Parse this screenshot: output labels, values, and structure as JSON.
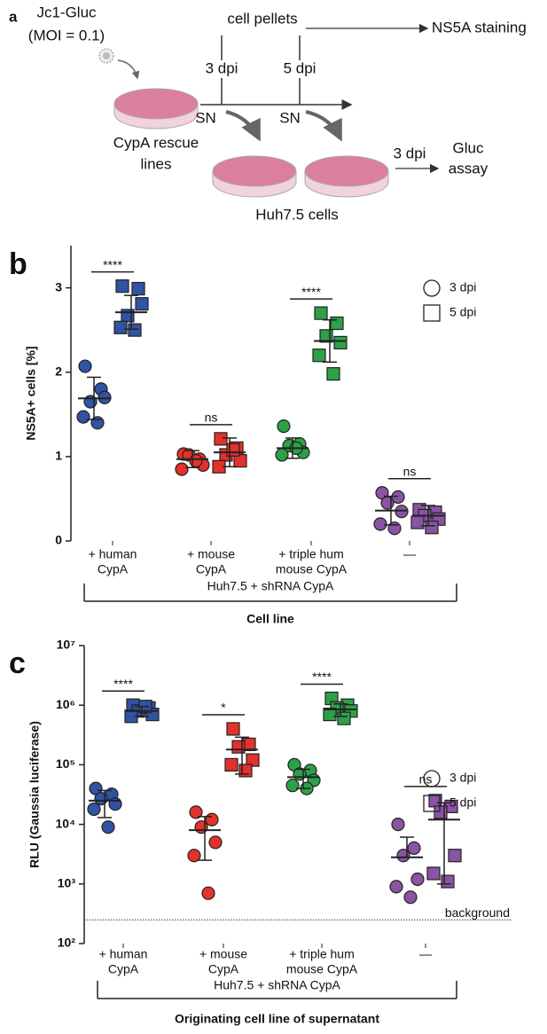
{
  "panel_a": {
    "label": "a",
    "virus": [
      "Jc1-Gluc",
      "(MOI = 0.1)"
    ],
    "cell_pellets": "cell pellets",
    "staining": "NS5A staining",
    "timepoints": [
      "3 dpi",
      "5 dpi"
    ],
    "supernatant": [
      "SN",
      "SN"
    ],
    "rescue_lines": [
      "CypA rescue",
      "lines"
    ],
    "target_cells": "Huh7.5 cells",
    "readout_time": "3 dpi",
    "readout": [
      "Gluc",
      "assay"
    ]
  },
  "chart_data": [
    {
      "type": "dot",
      "panel_label": "b",
      "ylabel": "NS5A+ cells  [%]",
      "xlabel": "Cell line",
      "group_label": "Huh7.5 + shRNA CypA",
      "categories": [
        [
          "+ human",
          "CypA"
        ],
        [
          "+ mouse",
          "CypA"
        ],
        [
          "+ triple hum",
          "mouse CypA"
        ],
        [
          "—"
        ]
      ],
      "colors": [
        "#3153a4",
        "#e4312b",
        "#2ca148",
        "#8b53a3"
      ],
      "ylim": [
        0,
        3.5
      ],
      "yticks": [
        0,
        1,
        2,
        3
      ],
      "legend": "top-right",
      "significance": [
        "****",
        "ns",
        "****",
        "ns"
      ],
      "series": [
        {
          "name": "3 dpi",
          "marker": "circle",
          "values": [
            [
              2.07,
              1.8,
              1.65,
              1.7,
              1.47,
              1.4
            ],
            [
              1.03,
              0.97,
              1.02,
              0.9,
              0.85,
              0.95
            ],
            [
              1.36,
              1.15,
              1.13,
              1.05,
              1.02,
              1.1
            ],
            [
              0.57,
              0.52,
              0.45,
              0.35,
              0.2,
              0.15
            ]
          ],
          "mean": [
            1.69,
            0.97,
            1.1,
            0.36
          ],
          "sd": [
            0.25,
            0.1,
            0.12,
            0.17
          ]
        },
        {
          "name": "5 dpi",
          "marker": "square",
          "values": [
            [
              3.02,
              2.99,
              2.67,
              2.81,
              2.53,
              2.5
            ],
            [
              1.21,
              1.1,
              1.02,
              0.95,
              0.88,
              1.08
            ],
            [
              2.7,
              2.58,
              2.43,
              2.35,
              2.2,
              1.98
            ],
            [
              0.37,
              0.34,
              0.3,
              0.26,
              0.22,
              0.16
            ]
          ],
          "mean": [
            2.71,
            1.05,
            2.37,
            0.3
          ],
          "sd": [
            0.2,
            0.17,
            0.25,
            0.12
          ]
        }
      ]
    },
    {
      "type": "dot",
      "panel_label": "c",
      "ylabel": "RLU (Gaussia luciferase)",
      "xlabel": "Originating cell line of supernatant",
      "group_label": "Huh7.5 + shRNA CypA",
      "categories": [
        [
          "+ human",
          "CypA"
        ],
        [
          "+ mouse",
          "CypA"
        ],
        [
          "+ triple hum",
          "mouse CypA"
        ],
        [
          "—"
        ]
      ],
      "colors": [
        "#3153a4",
        "#e4312b",
        "#2ca148",
        "#8b53a3"
      ],
      "log_scale": true,
      "ylim": [
        100,
        10000000
      ],
      "yticks": [
        {
          "value": 100,
          "label": "10²"
        },
        {
          "value": 1000,
          "label": "10³"
        },
        {
          "value": 10000,
          "label": "10⁴"
        },
        {
          "value": 100000,
          "label": "10⁵"
        },
        {
          "value": 1000000,
          "label": "10⁶"
        },
        {
          "value": 10000000,
          "label": "10⁷"
        }
      ],
      "legend": "top-right",
      "reference_line": {
        "value": 250,
        "label": "background"
      },
      "significance": [
        "****",
        "*",
        "****",
        "ns"
      ],
      "series": [
        {
          "name": "3 dpi",
          "marker": "circle",
          "values": [
            [
              40000,
              32000,
              27000,
              22000,
              18000,
              9000
            ],
            [
              16000,
              12000,
              9000,
              5000,
              3000,
              700
            ],
            [
              100000,
              80000,
              70000,
              55000,
              45000,
              40000
            ],
            [
              10000,
              4000,
              3000,
              1200,
              900,
              600
            ]
          ],
          "mean": [
            25000,
            8000,
            62000,
            2800
          ],
          "sd": [
            12000,
            5500,
            22000,
            3300
          ]
        },
        {
          "name": "5 dpi",
          "marker": "square",
          "values": [
            [
              1000000,
              900000,
              800000,
              700000,
              650000,
              950000
            ],
            [
              400000,
              220000,
              200000,
              120000,
              100000,
              80000
            ],
            [
              1300000,
              1000000,
              900000,
              800000,
              700000,
              600000
            ],
            [
              25000,
              20000,
              16000,
              3000,
              1500,
              1100
            ]
          ],
          "mean": [
            800000,
            180000,
            850000,
            12000
          ],
          "sd": [
            150000,
            110000,
            200000,
            11000
          ]
        }
      ]
    }
  ]
}
